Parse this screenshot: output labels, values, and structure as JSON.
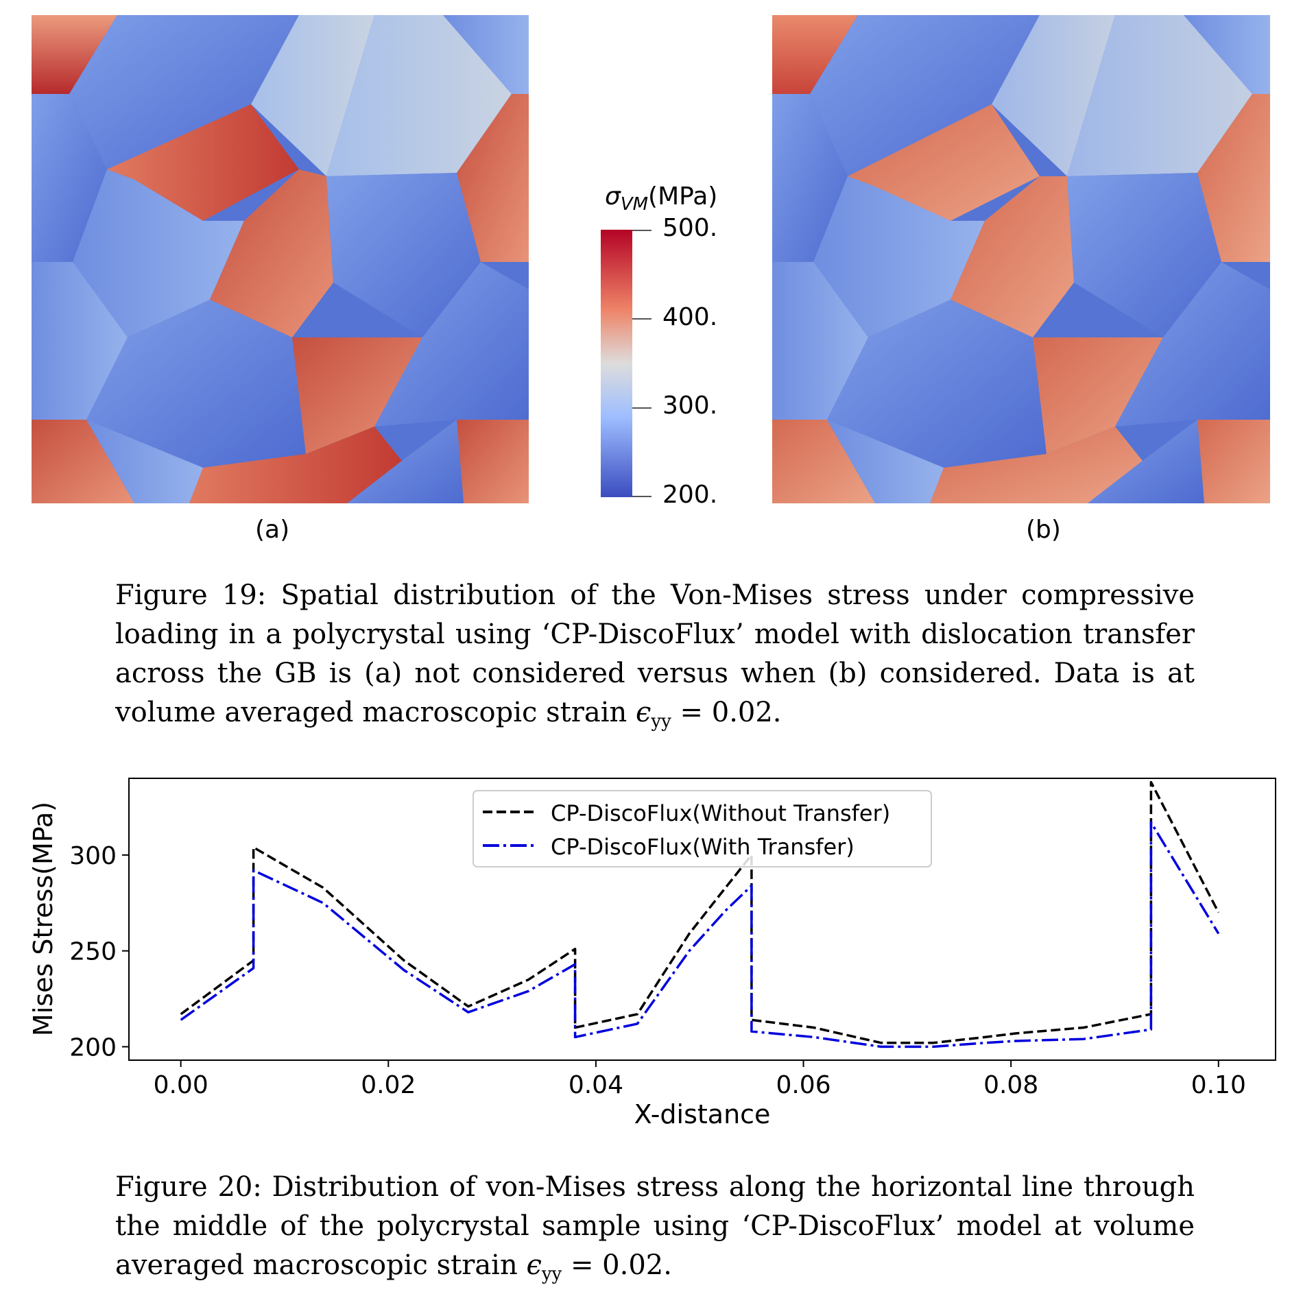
{
  "figure19": {
    "panel_a_label": "(a)",
    "panel_b_label": "(b)",
    "colorbar": {
      "title_symbol": "σ",
      "title_sub": "VM",
      "title_unit": "(MPa)",
      "ticks": [
        "500.",
        "400.",
        "300.",
        "200."
      ],
      "colors": [
        "#b40426",
        "#e8765c",
        "#dddcdc",
        "#8db0fe",
        "#3b4cc0"
      ]
    },
    "caption_prefix": "Figure 19:",
    "caption_body": "Spatial distribution of the Von-Mises stress under compressive loading in a polycrystal using ‘CP-DiscoFlux’ model with dislocation transfer across the GB is (a) not considered versus when (b) considered. Data is at volume averaged macroscopic strain",
    "caption_symbol": "ϵ",
    "caption_sub": "yy",
    "caption_eq": "= 0.02."
  },
  "figure20": {
    "caption_prefix": "Figure 20:",
    "caption_body": "Distribution of von-Mises stress along the horizontal line through the middle of the polycrystal sample using ‘CP-DiscoFlux’ model at volume averaged macroscopic strain",
    "caption_symbol": "ϵ",
    "caption_sub": "yy",
    "caption_eq": "= 0.02."
  },
  "chart_data": {
    "type": "line",
    "title": "",
    "xlabel": "X-distance",
    "ylabel": "Mises Stress(MPa)",
    "xlim": [
      -0.005,
      0.1055
    ],
    "ylim": [
      193,
      340
    ],
    "xticks": [
      0.0,
      0.02,
      0.04,
      0.06,
      0.08,
      0.1
    ],
    "xtick_labels": [
      "0.00",
      "0.02",
      "0.04",
      "0.06",
      "0.08",
      "0.10"
    ],
    "yticks": [
      200,
      250,
      300
    ],
    "ytick_labels": [
      "200",
      "250",
      "300"
    ],
    "grid": false,
    "legend_position": "top-center",
    "series": [
      {
        "name": "CP-DiscoFlux(Without Transfer)",
        "color": "#000000",
        "dash": "dashed",
        "x": [
          0.0,
          0.007,
          0.007,
          0.0137,
          0.0215,
          0.0277,
          0.0335,
          0.038,
          0.038,
          0.044,
          0.049,
          0.0525,
          0.055,
          0.055,
          0.061,
          0.0675,
          0.0725,
          0.0775,
          0.0805,
          0.087,
          0.0935,
          0.0935,
          0.1
        ],
        "y": [
          217,
          245,
          304,
          283,
          245,
          221,
          235,
          251,
          210,
          217,
          259,
          283,
          300,
          214,
          210,
          202,
          202,
          205,
          207,
          210,
          217,
          338,
          270
        ]
      },
      {
        "name": "CP-DiscoFlux(With Transfer)",
        "color": "#0000dd",
        "dash": "dashdot",
        "x": [
          0.0,
          0.007,
          0.007,
          0.0137,
          0.0215,
          0.0277,
          0.0335,
          0.038,
          0.038,
          0.044,
          0.049,
          0.0525,
          0.055,
          0.055,
          0.061,
          0.0675,
          0.0725,
          0.0775,
          0.0805,
          0.087,
          0.0935,
          0.0935,
          0.1
        ],
        "y": [
          214,
          241,
          292,
          275,
          240,
          218,
          229,
          243,
          205,
          212,
          250,
          271,
          284,
          208,
          205,
          200,
          200,
          202,
          203,
          204,
          209,
          317,
          259
        ]
      }
    ]
  }
}
